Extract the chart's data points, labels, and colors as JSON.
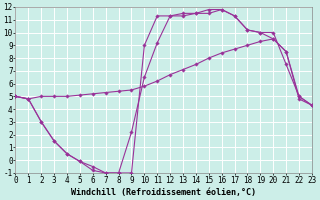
{
  "background_color": "#cceee8",
  "grid_color": "#ffffff",
  "line_color": "#993399",
  "line_width": 0.8,
  "marker": "D",
  "marker_size": 1.8,
  "xlabel": "Windchill (Refroidissement éolien,°C)",
  "xlabel_fontsize": 6,
  "tick_fontsize": 5.5,
  "xlim": [
    0,
    23
  ],
  "ylim": [
    -1,
    12
  ],
  "xticks": [
    0,
    1,
    2,
    3,
    4,
    5,
    6,
    7,
    8,
    9,
    10,
    11,
    12,
    13,
    14,
    15,
    16,
    17,
    18,
    19,
    20,
    21,
    22,
    23
  ],
  "yticks": [
    -1,
    0,
    1,
    2,
    3,
    4,
    5,
    6,
    7,
    8,
    9,
    10,
    11,
    12
  ],
  "series1_x": [
    0,
    1,
    2,
    3,
    4,
    5,
    6,
    7,
    8,
    9,
    10,
    11,
    12,
    13,
    14,
    15,
    16,
    17,
    18,
    19,
    20,
    21,
    22,
    23
  ],
  "series1_y": [
    5.0,
    4.8,
    5.0,
    5.0,
    5.0,
    5.1,
    5.2,
    5.3,
    5.4,
    5.5,
    5.8,
    6.2,
    6.7,
    7.1,
    7.5,
    8.0,
    8.4,
    8.7,
    9.0,
    9.3,
    9.5,
    8.5,
    4.8,
    4.3
  ],
  "series2_x": [
    0,
    1,
    2,
    3,
    4,
    5,
    6,
    7,
    8,
    9,
    10,
    11,
    12,
    13,
    14,
    15,
    16,
    17,
    18,
    19,
    20,
    21,
    22,
    23
  ],
  "series2_y": [
    5.0,
    4.8,
    3.0,
    1.5,
    0.5,
    -0.1,
    -0.8,
    -1.0,
    -1.0,
    -1.0,
    9.0,
    11.3,
    11.3,
    11.5,
    11.5,
    11.8,
    11.8,
    11.3,
    10.2,
    10.0,
    10.0,
    7.5,
    5.0,
    4.3
  ],
  "series3_x": [
    0,
    1,
    2,
    3,
    4,
    5,
    6,
    7,
    8,
    9,
    10,
    11,
    12,
    13,
    14,
    15,
    16,
    17,
    18,
    19,
    20,
    21,
    22,
    23
  ],
  "series3_y": [
    5.0,
    4.8,
    3.0,
    1.5,
    0.5,
    -0.1,
    -0.5,
    -1.0,
    -1.0,
    2.2,
    6.5,
    9.2,
    11.3,
    11.3,
    11.5,
    11.5,
    11.8,
    11.3,
    10.2,
    10.0,
    9.5,
    8.5,
    5.0,
    4.3
  ]
}
